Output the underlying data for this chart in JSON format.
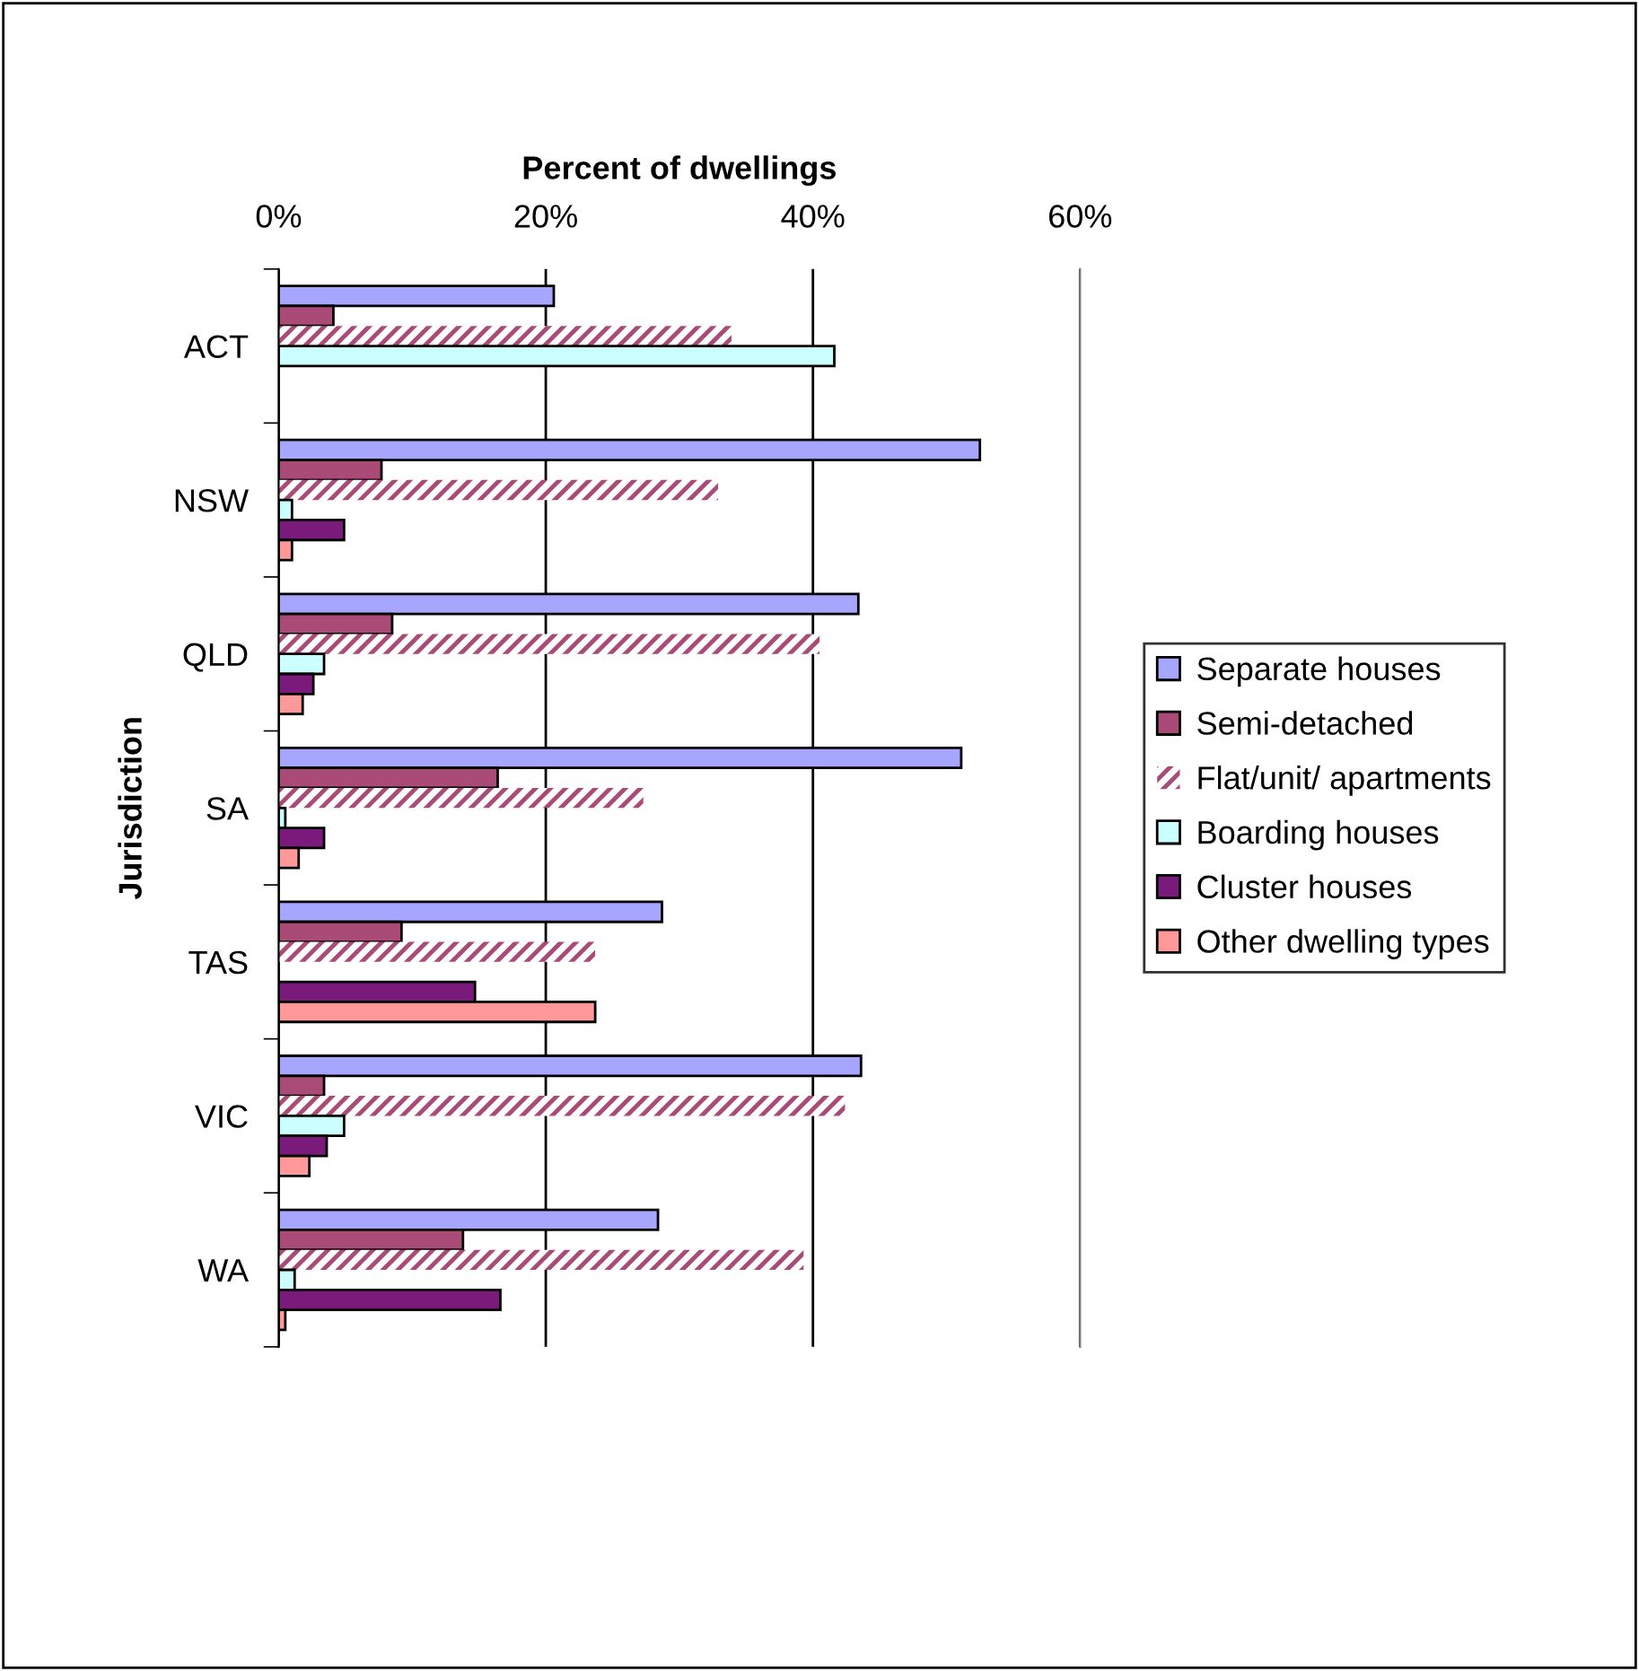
{
  "chart_data": {
    "type": "bar",
    "orientation": "horizontal",
    "xlabel": "Percent of dwellings",
    "ylabel": "Jurisdiction",
    "categories": [
      "ACT",
      "NSW",
      "QLD",
      "SA",
      "TAS",
      "VIC",
      "WA"
    ],
    "series": [
      {
        "name": "Separate houses",
        "color": "#a6a6ff",
        "values": [
          20.6,
          52.5,
          43.4,
          51.1,
          28.7,
          43.6,
          28.4
        ]
      },
      {
        "name": "Semi-detached",
        "color": "#a94a77",
        "values": [
          4.1,
          7.7,
          8.5,
          16.4,
          9.2,
          3.4,
          13.8
        ]
      },
      {
        "name": "Flat/unit/ apartments",
        "color": "#a94a77",
        "values": [
          33.9,
          32.9,
          40.5,
          27.3,
          23.7,
          42.4,
          39.3
        ]
      },
      {
        "name": "Boarding houses",
        "color": "#ccffff",
        "values": [
          41.6,
          1.0,
          3.4,
          0.5,
          null,
          4.9,
          1.2
        ]
      },
      {
        "name": "Cluster houses",
        "color": "#7a1a7a",
        "values": [
          null,
          4.9,
          2.6,
          3.4,
          14.7,
          3.6,
          16.6
        ]
      },
      {
        "name": "Other dwelling types",
        "color": "#ff9999",
        "values": [
          null,
          1.0,
          1.8,
          1.5,
          23.7,
          2.3,
          0.5
        ]
      }
    ],
    "xlim": [
      0,
      60
    ],
    "xticks": [
      {
        "value": 0,
        "label": "0%"
      },
      {
        "value": 20,
        "label": "20%"
      },
      {
        "value": 40,
        "label": "40%"
      },
      {
        "value": 60,
        "label": "60%"
      }
    ],
    "grid": "x",
    "legend": "right"
  }
}
